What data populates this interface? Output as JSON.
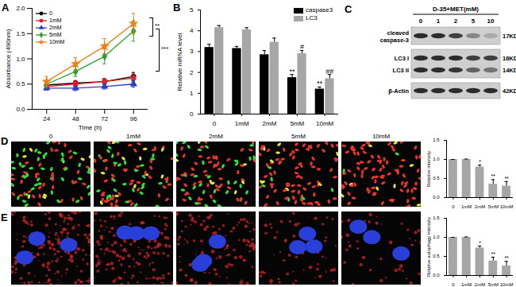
{
  "chart_data": [
    {
      "panel": "A",
      "type": "line",
      "x_label": "Time (h)",
      "y_label": "Absorbance (490nm)",
      "x": [
        24,
        48,
        72,
        96
      ],
      "xlim": [
        12,
        108
      ],
      "xticks": [
        24,
        48,
        72,
        96
      ],
      "ylim": [
        0,
        2
      ],
      "yticks": [
        {
          "value": 0,
          "label": "0.0"
        },
        {
          "value": 0.5,
          "label": "0.5"
        },
        {
          "value": 1,
          "label": "1.0"
        },
        {
          "value": 1.5,
          "label": "1.5"
        },
        {
          "value": 2,
          "label": "2.0"
        }
      ],
      "legend": "top-left",
      "series": [
        {
          "name": "0",
          "color": "#000000",
          "marker": "circle",
          "values": [
            0.48,
            0.52,
            0.55,
            0.65
          ],
          "errors": [
            0.05,
            0.05,
            0.06,
            0.08
          ]
        },
        {
          "name": "1mM",
          "color": "#e3212b",
          "marker": "square",
          "values": [
            0.45,
            0.5,
            0.55,
            0.62
          ],
          "errors": [
            0.05,
            0.06,
            0.06,
            0.08
          ]
        },
        {
          "name": "2mM",
          "color": "#2b3fc4",
          "marker": "triangle",
          "values": [
            0.42,
            0.42,
            0.45,
            0.5
          ],
          "errors": [
            0.04,
            0.05,
            0.05,
            0.06
          ]
        },
        {
          "name": "5mM",
          "color": "#2ca02c",
          "marker": "diamond",
          "values": [
            0.5,
            0.75,
            1.05,
            1.55
          ],
          "errors": [
            0.08,
            0.1,
            0.15,
            0.2
          ]
        },
        {
          "name": "10mM",
          "color": "#f07f16",
          "marker": "star",
          "values": [
            0.55,
            0.9,
            1.25,
            1.7
          ],
          "errors": [
            0.1,
            0.12,
            0.15,
            0.2
          ]
        }
      ],
      "annotations": [
        "**",
        "***"
      ]
    },
    {
      "panel": "B",
      "type": "bar",
      "y_label": "Relative mRNA level",
      "categories": [
        "0",
        "1mM",
        "2mM",
        "5mM",
        "10mM"
      ],
      "ylim": [
        0,
        5
      ],
      "yticks": [
        0,
        1,
        2,
        3,
        4,
        5
      ],
      "legend": "top-right",
      "series": [
        {
          "name": "caspase3",
          "color": "#000000",
          "values": [
            3.2,
            3.15,
            2.85,
            1.75,
            1.2
          ],
          "errors": [
            0.15,
            0.1,
            0.2,
            0.15,
            0.1
          ],
          "significance": [
            null,
            null,
            null,
            "**",
            "**"
          ]
        },
        {
          "name": "LC3",
          "color": "#a6a6a6",
          "values": [
            4.15,
            4.05,
            3.45,
            2.9,
            1.7
          ],
          "errors": [
            0.1,
            0.1,
            0.2,
            0.15,
            0.2
          ],
          "significance": [
            null,
            null,
            null,
            "#",
            "##"
          ]
        }
      ]
    },
    {
      "type": "bar",
      "y_label": "Relative intensity",
      "categories": [
        "0",
        "1mM",
        "2mM",
        "5mM",
        "10mM"
      ],
      "ylim": [
        0,
        1.5
      ],
      "yticks": [
        {
          "value": 0,
          "label": "0.0"
        },
        {
          "value": 0.5,
          "label": "0.5"
        },
        {
          "value": 1,
          "label": "1.0"
        },
        {
          "value": 1.5,
          "label": "1.5"
        }
      ],
      "color": "#a6a6a6",
      "values": [
        1,
        1,
        0.8,
        0.35,
        0.3
      ],
      "errors": [
        0,
        0.01,
        0.05,
        0.12,
        0.12
      ],
      "significance": [
        null,
        null,
        "*",
        "**",
        "**"
      ]
    },
    {
      "type": "bar",
      "y_label": "Relative autophagy intensity",
      "categories": [
        "0",
        "1mM",
        "2mM",
        "5mM",
        "10mM"
      ],
      "ylim": [
        0,
        1.5
      ],
      "yticks": [
        {
          "value": 0,
          "label": "0.0"
        },
        {
          "value": 0.5,
          "label": "0.5"
        },
        {
          "value": 1,
          "label": "1.0"
        },
        {
          "value": 1.5,
          "label": "1.5"
        }
      ],
      "color": "#a6a6a6",
      "values": [
        1,
        1,
        0.72,
        0.38,
        0.25
      ],
      "errors": [
        0,
        0.01,
        0.05,
        0.1,
        0.12
      ],
      "significance": [
        null,
        null,
        "*",
        "**",
        "**"
      ]
    }
  ],
  "blot": {
    "panel": "C",
    "title": "D-35+MET(mM)",
    "lanes": [
      "0",
      "1",
      "2",
      "5",
      "10"
    ],
    "rows": [
      {
        "label": "cleaved caspase-3",
        "size": "17KD",
        "band_intensity": [
          0.9,
          0.9,
          0.8,
          0.4,
          0.2
        ]
      },
      {
        "label": "LC3 I",
        "size": "16KD",
        "band_intensity": [
          0.9,
          0.9,
          0.9,
          0.8,
          0.8
        ]
      },
      {
        "label": "LC3 II",
        "size": "14KD",
        "band_intensity": [
          0.9,
          0.9,
          0.85,
          0.6,
          0.5
        ]
      },
      {
        "label": "β-Actin",
        "size": "42KD",
        "band_intensity": [
          0.9,
          0.9,
          0.9,
          0.9,
          0.9
        ]
      }
    ]
  },
  "micrographs": {
    "D": {
      "panel": "D",
      "labels": [
        "0",
        "1mM",
        "2mM",
        "5mM",
        "10mM"
      ]
    },
    "E": {
      "panel": "E"
    }
  }
}
